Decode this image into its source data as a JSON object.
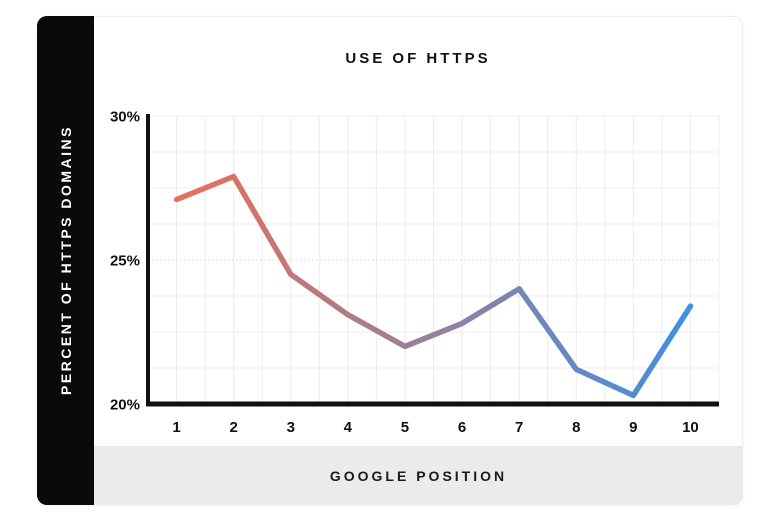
{
  "header": {
    "title": "USE OF HTTPS"
  },
  "sidebar": {
    "label": "PERCENT OF HTTPS DOMAINS",
    "bg_color": "#0a0a0a",
    "text_color": "#ffffff"
  },
  "footer": {
    "label": "GOOGLE POSITION",
    "bg_color": "#ebebeb"
  },
  "chart_data": {
    "type": "line",
    "title": "USE OF HTTPS",
    "xlabel": "GOOGLE POSITION",
    "ylabel": "PERCENT OF HTTPS DOMAINS",
    "categories": [
      "1",
      "2",
      "3",
      "4",
      "5",
      "6",
      "7",
      "8",
      "9",
      "10"
    ],
    "values": [
      27.1,
      27.9,
      24.5,
      23.1,
      22.0,
      22.8,
      24.0,
      21.2,
      20.3,
      23.4
    ],
    "series_name": "Percent of HTTPS domains",
    "ylim": [
      20,
      30
    ],
    "xlim": [
      0.5,
      10.5
    ],
    "yticks": [
      {
        "label": "30%",
        "value": 30
      },
      {
        "label": "25%",
        "value": 25
      },
      {
        "label": "20%",
        "value": 20
      }
    ],
    "grid": {
      "on": true,
      "color": "#ececec",
      "y_step_percent": 1.25,
      "x_steps": 20,
      "highlight_value": 25,
      "highlight_color": "#d8d8d8",
      "highlight_style": "dotted"
    },
    "legend": "none",
    "line_style": {
      "width": 5.5,
      "gradient_start": "#E8705A",
      "gradient_end": "#4190E0"
    },
    "axis_color": "#111111",
    "tick_font_size": 15
  }
}
